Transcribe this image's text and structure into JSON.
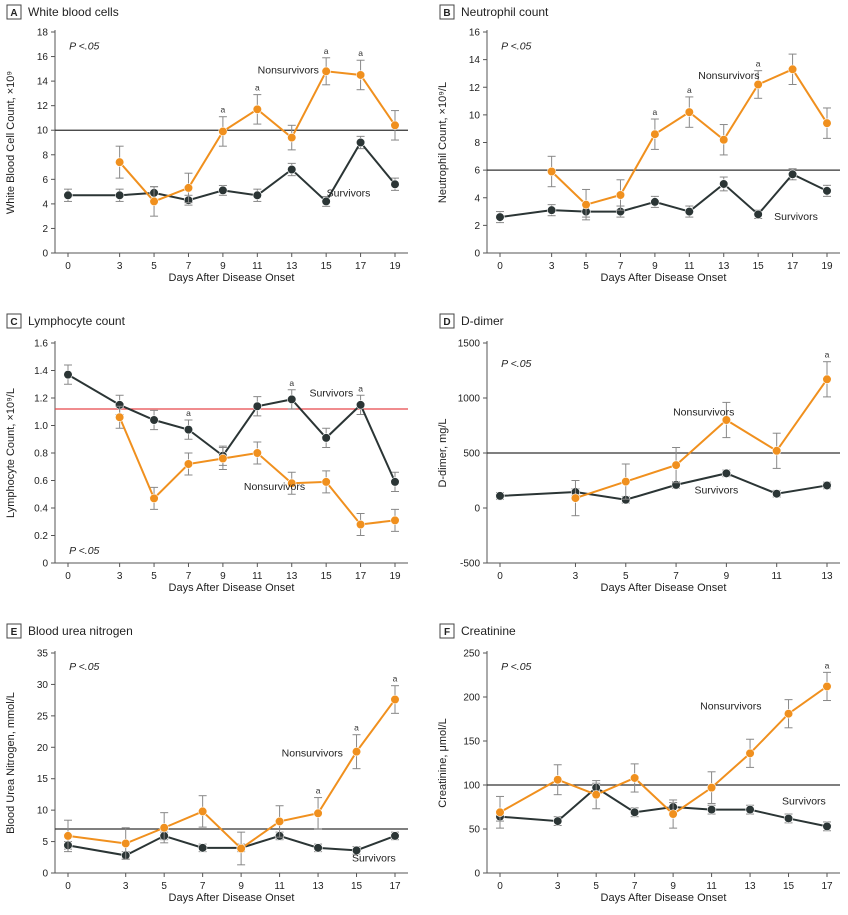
{
  "colors": {
    "survivors": "#2b3535",
    "nonsurvivors": "#f0901e",
    "reference_line": "#333333",
    "lymphocyte_reference_line": "#e8474a",
    "error_bar": "#888888",
    "axis": "#555555",
    "panel_label_border": "#444444"
  },
  "chart_data": [
    {
      "panel": "A",
      "type": "line",
      "title": "White blood cells",
      "xlabel": "Days After Disease Onset",
      "ylabel": "White Blood Cell Count, ×10⁹",
      "x": [
        0,
        3,
        5,
        7,
        9,
        11,
        13,
        15,
        17,
        19
      ],
      "xticks": [
        "0",
        "3",
        "5",
        "7",
        "9",
        "11",
        "13",
        "15",
        "17",
        "19"
      ],
      "ylim": [
        0,
        18
      ],
      "yticks": [
        "0",
        "2",
        "4",
        "6",
        "8",
        "10",
        "12",
        "14",
        "16",
        "18"
      ],
      "reference_line": 10,
      "p_value": "P <.05",
      "significance_marker": "a",
      "series": [
        {
          "name": "Survivors",
          "values": [
            4.7,
            4.7,
            4.9,
            4.3,
            5.1,
            4.7,
            6.8,
            4.2,
            9.0,
            5.6
          ],
          "error": [
            0.5,
            0.5,
            0.5,
            0.4,
            0.4,
            0.5,
            0.5,
            0.4,
            0.5,
            0.5
          ]
        },
        {
          "name": "Nonsurvivors",
          "values": [
            null,
            7.4,
            4.2,
            5.3,
            9.9,
            11.7,
            9.4,
            14.8,
            14.5,
            10.4
          ],
          "error": [
            null,
            1.3,
            1.2,
            1.2,
            1.2,
            1.2,
            1.0,
            1.1,
            1.2,
            1.2
          ]
        }
      ],
      "sig_x": [
        9,
        11,
        15,
        17
      ],
      "annotations": [
        {
          "text": "Nonsurvivors",
          "x": 12.8,
          "y": 14.6
        },
        {
          "text": "Survivors",
          "x": 16.3,
          "y": 4.6
        }
      ]
    },
    {
      "panel": "B",
      "type": "line",
      "title": "Neutrophil count",
      "xlabel": "Days After Disease Onset",
      "ylabel": "Neutrophil Count, ×10⁹/L",
      "x": [
        0,
        3,
        5,
        7,
        9,
        11,
        13,
        15,
        17,
        19
      ],
      "xticks": [
        "0",
        "3",
        "5",
        "7",
        "9",
        "11",
        "13",
        "15",
        "17",
        "19"
      ],
      "ylim": [
        0,
        16
      ],
      "yticks": [
        "0",
        "2",
        "4",
        "6",
        "8",
        "10",
        "12",
        "14",
        "16"
      ],
      "reference_line": 6,
      "p_value": "P <.05",
      "significance_marker": "a",
      "series": [
        {
          "name": "Survivors",
          "values": [
            2.6,
            3.1,
            3.0,
            3.0,
            3.7,
            3.0,
            5.0,
            2.8,
            5.7,
            4.5
          ],
          "error": [
            0.4,
            0.4,
            0.4,
            0.4,
            0.4,
            0.4,
            0.5,
            0.3,
            0.4,
            0.4
          ]
        },
        {
          "name": "Nonsurvivors",
          "values": [
            null,
            5.9,
            3.5,
            4.2,
            8.6,
            10.2,
            8.2,
            12.2,
            13.3,
            9.4
          ],
          "error": [
            null,
            1.1,
            1.1,
            1.1,
            1.1,
            1.1,
            1.1,
            1.0,
            1.1,
            1.1
          ]
        }
      ],
      "sig_x": [
        9,
        11,
        15
      ],
      "annotations": [
        {
          "text": "Nonsurvivors",
          "x": 13.3,
          "y": 12.6
        },
        {
          "text": "Survivors",
          "x": 17.2,
          "y": 2.4
        }
      ]
    },
    {
      "panel": "C",
      "type": "line",
      "title": "Lymphocyte count",
      "xlabel": "Days After Disease Onset",
      "ylabel": "Lymphocyte Count, ×10⁹/L",
      "x": [
        0,
        3,
        5,
        7,
        9,
        11,
        13,
        15,
        17,
        19
      ],
      "xticks": [
        "0",
        "3",
        "5",
        "7",
        "9",
        "11",
        "13",
        "15",
        "17",
        "19"
      ],
      "ylim": [
        0,
        1.6
      ],
      "yticks": [
        "0",
        "0.2",
        "0.4",
        "0.6",
        "0.8",
        "1.0",
        "1.2",
        "1.4",
        "1.6"
      ],
      "reference_line": 1.12,
      "p_value": "P <.05",
      "significance_marker": "a",
      "series": [
        {
          "name": "Survivors",
          "values": [
            1.37,
            1.15,
            1.04,
            0.97,
            0.78,
            1.14,
            1.19,
            0.91,
            1.15,
            0.59
          ],
          "error": [
            0.07,
            0.07,
            0.07,
            0.07,
            0.07,
            0.07,
            0.07,
            0.07,
            0.07,
            0.07
          ]
        },
        {
          "name": "Nonsurvivors",
          "values": [
            null,
            1.06,
            0.47,
            0.72,
            0.76,
            0.8,
            0.58,
            0.59,
            0.28,
            0.31
          ],
          "error": [
            null,
            0.08,
            0.08,
            0.08,
            0.08,
            0.08,
            0.08,
            0.08,
            0.08,
            0.08
          ]
        }
      ],
      "sig_x": [
        7,
        13,
        17
      ],
      "annotations": [
        {
          "text": "Survivors",
          "x": 15.3,
          "y": 1.21
        },
        {
          "text": "Nonsurvivors",
          "x": 12.0,
          "y": 0.53
        }
      ]
    },
    {
      "panel": "D",
      "type": "line",
      "title": "D-dimer",
      "xlabel": "Days After Disease Onset",
      "ylabel": "D-dimer, mg/L",
      "x": [
        0,
        3,
        5,
        7,
        9,
        11,
        13
      ],
      "xticks": [
        "0",
        "3",
        "5",
        "7",
        "9",
        "11",
        "13"
      ],
      "ylim": [
        -500,
        1500
      ],
      "yticks": [
        "-500",
        "0",
        "500",
        "1000",
        "1500"
      ],
      "reference_line": 500,
      "p_value": "P <.05",
      "significance_marker": "a",
      "series": [
        {
          "name": "Survivors",
          "values": [
            110,
            145,
            75,
            210,
            315,
            130,
            205
          ],
          "error": [
            30,
            30,
            30,
            30,
            30,
            30,
            30
          ]
        },
        {
          "name": "Nonsurvivors",
          "values": [
            null,
            90,
            240,
            390,
            800,
            520,
            1170
          ],
          "error": [
            null,
            160,
            160,
            160,
            160,
            160,
            160
          ]
        }
      ],
      "sig_x": [
        13
      ],
      "annotations": [
        {
          "text": "Nonsurvivors",
          "x": 8.1,
          "y": 840
        },
        {
          "text": "Survivors",
          "x": 8.6,
          "y": 130
        }
      ]
    },
    {
      "panel": "E",
      "type": "line",
      "title": "Blood urea nitrogen",
      "xlabel": "Days After Disease Onset",
      "ylabel": "Blood Urea Nitrogen, mmol/L",
      "x": [
        0,
        3,
        5,
        7,
        9,
        11,
        13,
        15,
        17
      ],
      "xticks": [
        "0",
        "3",
        "5",
        "7",
        "9",
        "11",
        "13",
        "15",
        "17"
      ],
      "ylim": [
        0,
        35
      ],
      "yticks": [
        "0",
        "5",
        "10",
        "15",
        "20",
        "25",
        "30",
        "35"
      ],
      "reference_line": 7,
      "p_value": "P <.05",
      "significance_marker": "a",
      "series": [
        {
          "name": "Survivors",
          "values": [
            4.4,
            2.8,
            5.9,
            4.0,
            4.0,
            5.9,
            4.0,
            3.6,
            5.9
          ],
          "error": [
            0.6,
            0.6,
            0.6,
            0.6,
            0.6,
            0.6,
            0.6,
            0.6,
            0.6
          ]
        },
        {
          "name": "Nonsurvivors",
          "values": [
            5.9,
            4.7,
            7.2,
            9.8,
            3.9,
            8.2,
            9.5,
            19.3,
            27.6
          ],
          "error": [
            2.5,
            2.5,
            2.4,
            2.5,
            2.6,
            2.5,
            2.5,
            2.7,
            2.2
          ]
        }
      ],
      "sig_x": [
        13,
        15,
        17
      ],
      "annotations": [
        {
          "text": "Nonsurvivors",
          "x": 12.7,
          "y": 18.5
        },
        {
          "text": "Survivors",
          "x": 15.9,
          "y": 1.8
        }
      ]
    },
    {
      "panel": "F",
      "type": "line",
      "title": "Creatinine",
      "xlabel": "Days After Disease Onset",
      "ylabel": "Creatinine, μmol/L",
      "x": [
        0,
        3,
        5,
        7,
        9,
        11,
        13,
        15,
        17
      ],
      "xticks": [
        "0",
        "3",
        "5",
        "7",
        "9",
        "11",
        "13",
        "15",
        "17"
      ],
      "ylim": [
        0,
        250
      ],
      "yticks": [
        "0",
        "50",
        "100",
        "150",
        "200",
        "250"
      ],
      "reference_line": 100,
      "p_value": "P <.05",
      "significance_marker": "a",
      "series": [
        {
          "name": "Survivors",
          "values": [
            64,
            59,
            97,
            69,
            75,
            72,
            72,
            62,
            53
          ],
          "error": [
            5,
            5,
            5,
            5,
            5,
            5,
            5,
            5,
            5
          ]
        },
        {
          "name": "Nonsurvivors",
          "values": [
            69,
            106,
            89,
            108,
            67,
            97,
            136,
            181,
            212
          ],
          "error": [
            18,
            17,
            16,
            16,
            16,
            18,
            16,
            16,
            16
          ]
        }
      ],
      "sig_x": [
        17
      ],
      "annotations": [
        {
          "text": "Nonsurvivors",
          "x": 12.0,
          "y": 186
        },
        {
          "text": "Survivors",
          "x": 15.8,
          "y": 78
        }
      ]
    }
  ]
}
